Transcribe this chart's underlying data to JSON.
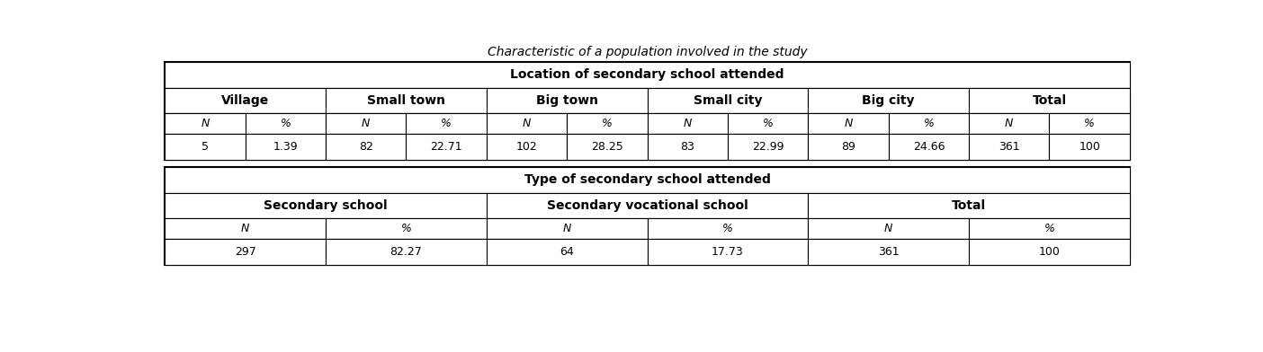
{
  "title": "Characteristic of a population involved in the study",
  "section1_header": "Location of secondary school attended",
  "section1_cols": [
    "Village",
    "Small town",
    "Big town",
    "Small city",
    "Big city",
    "Total"
  ],
  "section1_subheaders": [
    "N",
    "%",
    "N",
    "%",
    "N",
    "%",
    "N",
    "%",
    "N",
    "%",
    "N",
    "%"
  ],
  "section1_data": [
    "5",
    "1.39",
    "82",
    "22.71",
    "102",
    "28.25",
    "83",
    "22.99",
    "89",
    "24.66",
    "361",
    "100"
  ],
  "section2_header": "Type of secondary school attended",
  "section2_cols": [
    "Secondary school",
    "Secondary vocational school",
    "Total"
  ],
  "section2_subheaders": [
    "N",
    "%",
    "N",
    "%",
    "N",
    "%"
  ],
  "section2_data": [
    "297",
    "82.27",
    "64",
    "17.73",
    "361",
    "100"
  ],
  "background_color": "#ffffff",
  "text_color": "#000000",
  "bold_fontsize": 10,
  "regular_fontsize": 9,
  "title_fontsize": 10,
  "lw_outer": 1.5,
  "lw_inner": 0.8
}
